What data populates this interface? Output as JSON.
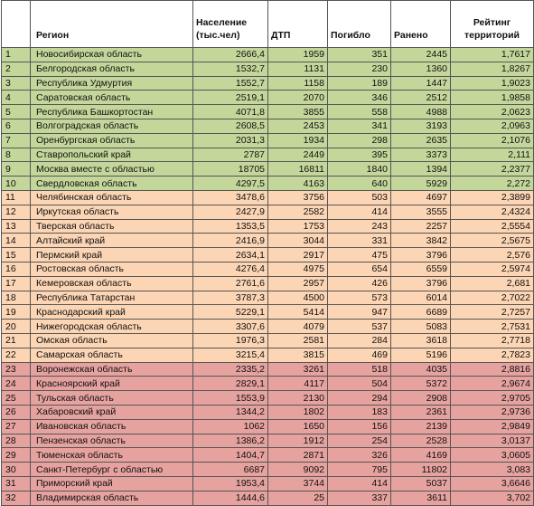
{
  "table": {
    "headers": {
      "index": "",
      "region": "Регион",
      "population": "Население (тыс.чел)",
      "dtp": "ДТП",
      "killed": "Погибло",
      "injured": "Ранено",
      "rating": "Рейтинг территорий"
    },
    "group_colors": {
      "green": "#c4d79b",
      "orange": "#fcd5b4",
      "red": "#e6a29f"
    },
    "rows": [
      {
        "n": "1",
        "region": "Новосибирская область",
        "pop": "2666,4",
        "dtp": "1959",
        "killed": "351",
        "injured": "2445",
        "rating": "1,7617",
        "group": "green"
      },
      {
        "n": "2",
        "region": "Белгородская область",
        "pop": "1532,7",
        "dtp": "1131",
        "killed": "230",
        "injured": "1360",
        "rating": "1,8267",
        "group": "green"
      },
      {
        "n": "3",
        "region": "Республика Удмуртия",
        "pop": "1552,7",
        "dtp": "1158",
        "killed": "189",
        "injured": "1447",
        "rating": "1,9023",
        "group": "green"
      },
      {
        "n": "4",
        "region": "Саратовская область",
        "pop": "2519,1",
        "dtp": "2070",
        "killed": "346",
        "injured": "2512",
        "rating": "1,9858",
        "group": "green"
      },
      {
        "n": "5",
        "region": "Республика Башкортостан",
        "pop": "4071,8",
        "dtp": "3855",
        "killed": "558",
        "injured": "4988",
        "rating": "2,0623",
        "group": "green"
      },
      {
        "n": "6",
        "region": "Волгоградская область",
        "pop": "2608,5",
        "dtp": "2453",
        "killed": "341",
        "injured": "3193",
        "rating": "2,0963",
        "group": "green"
      },
      {
        "n": "7",
        "region": "Оренбургская область",
        "pop": "2031,3",
        "dtp": "1934",
        "killed": "298",
        "injured": "2635",
        "rating": "2,1076",
        "group": "green"
      },
      {
        "n": "8",
        "region": "Ставропольский край",
        "pop": "2787",
        "dtp": "2449",
        "killed": "395",
        "injured": "3373",
        "rating": "2,111",
        "group": "green"
      },
      {
        "n": "9",
        "region": "Москва вместе с областью",
        "pop": "18705",
        "dtp": "16811",
        "killed": "1840",
        "injured": "1394",
        "rating": "2,2377",
        "group": "green"
      },
      {
        "n": "10",
        "region": "Свердловская область",
        "pop": "4297,5",
        "dtp": "4163",
        "killed": "640",
        "injured": "5929",
        "rating": "2,272",
        "group": "green"
      },
      {
        "n": "11",
        "region": "Челябинская область",
        "pop": "3478,6",
        "dtp": "3756",
        "killed": "503",
        "injured": "4697",
        "rating": "2,3899",
        "group": "orange"
      },
      {
        "n": "12",
        "region": "Иркутская область",
        "pop": "2427,9",
        "dtp": "2582",
        "killed": "414",
        "injured": "3555",
        "rating": "2,4324",
        "group": "orange"
      },
      {
        "n": "13",
        "region": "Тверская область",
        "pop": "1353,5",
        "dtp": "1753",
        "killed": "243",
        "injured": "2257",
        "rating": "2,5554",
        "group": "orange"
      },
      {
        "n": "14",
        "region": "Алтайский край",
        "pop": "2416,9",
        "dtp": "3044",
        "killed": "331",
        "injured": "3842",
        "rating": "2,5675",
        "group": "orange"
      },
      {
        "n": "15",
        "region": "Пермский край",
        "pop": "2634,1",
        "dtp": "2917",
        "killed": "475",
        "injured": "3796",
        "rating": "2,576",
        "group": "orange"
      },
      {
        "n": "16",
        "region": "Ростовская область",
        "pop": "4276,4",
        "dtp": "4975",
        "killed": "654",
        "injured": "6559",
        "rating": "2,5974",
        "group": "orange"
      },
      {
        "n": "17",
        "region": "Кемеровская область",
        "pop": "2761,6",
        "dtp": "2957",
        "killed": "426",
        "injured": "3796",
        "rating": "2,681",
        "group": "orange"
      },
      {
        "n": "18",
        "region": "Республика Татарстан",
        "pop": "3787,3",
        "dtp": "4500",
        "killed": "573",
        "injured": "6014",
        "rating": "2,7022",
        "group": "orange"
      },
      {
        "n": "19",
        "region": "Краснодарский край",
        "pop": "5229,1",
        "dtp": "5414",
        "killed": "947",
        "injured": "6689",
        "rating": "2,7257",
        "group": "orange"
      },
      {
        "n": "20",
        "region": "Нижегородская область",
        "pop": "3307,6",
        "dtp": "4079",
        "killed": "537",
        "injured": "5083",
        "rating": "2,7531",
        "group": "orange"
      },
      {
        "n": "21",
        "region": "Омская область",
        "pop": "1976,3",
        "dtp": "2581",
        "killed": "284",
        "injured": "3618",
        "rating": "2,7718",
        "group": "orange"
      },
      {
        "n": "22",
        "region": "Самарская область",
        "pop": "3215,4",
        "dtp": "3815",
        "killed": "469",
        "injured": "5196",
        "rating": "2,7823",
        "group": "orange"
      },
      {
        "n": "23",
        "region": "Воронежская область",
        "pop": "2335,2",
        "dtp": "3261",
        "killed": "518",
        "injured": "4035",
        "rating": "2,8816",
        "group": "red"
      },
      {
        "n": "24",
        "region": "Красноярский край",
        "pop": "2829,1",
        "dtp": "4117",
        "killed": "504",
        "injured": "5372",
        "rating": "2,9674",
        "group": "red"
      },
      {
        "n": "25",
        "region": "Тульская область",
        "pop": "1553,9",
        "dtp": "2130",
        "killed": "294",
        "injured": "2908",
        "rating": "2,9705",
        "group": "red"
      },
      {
        "n": "26",
        "region": "Хабаровский край",
        "pop": "1344,2",
        "dtp": "1802",
        "killed": "183",
        "injured": "2361",
        "rating": "2,9736",
        "group": "red"
      },
      {
        "n": "27",
        "region": "Ивановская область",
        "pop": "1062",
        "dtp": "1650",
        "killed": "156",
        "injured": "2139",
        "rating": "2,9849",
        "group": "red"
      },
      {
        "n": "28",
        "region": "Пензенская область",
        "pop": "1386,2",
        "dtp": "1912",
        "killed": "254",
        "injured": "2528",
        "rating": "3,0137",
        "group": "red"
      },
      {
        "n": "29",
        "region": "Тюменская область",
        "pop": "1404,7",
        "dtp": "2871",
        "killed": "326",
        "injured": "4169",
        "rating": "3,0605",
        "group": "red"
      },
      {
        "n": "30",
        "region": "Санкт-Петербург с областью",
        "pop": "6687",
        "dtp": "9092",
        "killed": "795",
        "injured": "11802",
        "rating": "3,083",
        "group": "red"
      },
      {
        "n": "31",
        "region": "Приморский край",
        "pop": "1953,4",
        "dtp": "3744",
        "killed": "414",
        "injured": "5037",
        "rating": "3,6646",
        "group": "red"
      },
      {
        "n": "32",
        "region": "Владимирская область",
        "pop": "1444,6",
        "dtp": "25",
        "killed": "337",
        "injured": "3611",
        "rating": "3,702",
        "group": "red"
      }
    ]
  }
}
